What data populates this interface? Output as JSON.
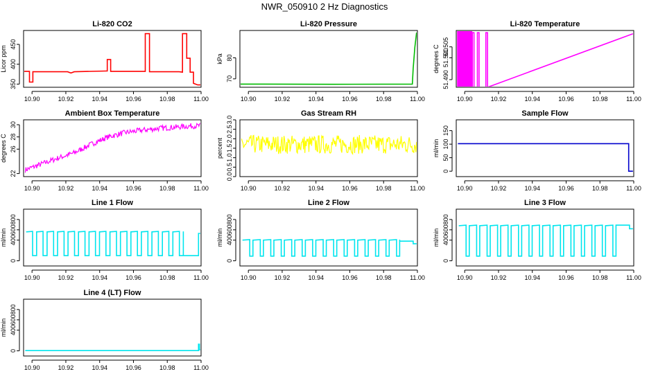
{
  "figure_title": "NWR_050910  2 Hz Diagnostics",
  "chart_data": [
    {
      "type": "line",
      "title": "Li-820 CO2",
      "ylabel": "Licor ppm",
      "color": "#ff0000",
      "xlim": [
        10.895,
        11.0
      ],
      "ylim": [
        342,
        485
      ],
      "xticks": [
        10.9,
        10.92,
        10.94,
        10.96,
        10.98,
        11.0
      ],
      "xtick_labels": [
        "10.90",
        "10.92",
        "10.94",
        "10.96",
        "10.98",
        "11.00"
      ],
      "yticks": [
        350,
        400,
        450
      ],
      "ytick_labels": [
        "350",
        "400",
        "450"
      ],
      "series": [
        {
          "name": "CO2",
          "x": [
            10.895,
            10.8985,
            10.8985,
            10.9005,
            10.9005,
            10.921,
            10.923,
            10.925,
            10.944,
            10.9445,
            10.9445,
            10.9465,
            10.9465,
            10.967,
            10.967,
            10.9695,
            10.9695,
            10.987,
            10.989,
            10.989,
            10.9915,
            10.9915,
            10.9935,
            10.9935,
            10.9955,
            10.9955,
            10.998,
            11.0
          ],
          "y": [
            382,
            382,
            355,
            355,
            381,
            381,
            378,
            381,
            383,
            383,
            412,
            412,
            382,
            382,
            477,
            477,
            381,
            381,
            380,
            477,
            477,
            415,
            415,
            380,
            380,
            352,
            348,
            348
          ]
        }
      ]
    },
    {
      "type": "line",
      "title": "Li-820 Pressure",
      "ylabel": "kPa",
      "color": "#00bb00",
      "xlim": [
        10.895,
        11.0
      ],
      "ylim": [
        66,
        93
      ],
      "xticks": [
        10.9,
        10.92,
        10.94,
        10.96,
        10.98,
        11.0
      ],
      "xtick_labels": [
        "10.90",
        "10.92",
        "10.94",
        "10.96",
        "10.98",
        "11.00"
      ],
      "yticks": [
        70,
        80
      ],
      "ytick_labels": [
        "70",
        "80"
      ],
      "series": [
        {
          "name": "Pressure",
          "x": [
            10.895,
            10.95,
            10.997,
            10.9975,
            10.9985,
            10.9995
          ],
          "y": [
            67.5,
            67.4,
            67.5,
            75,
            85,
            92
          ]
        }
      ]
    },
    {
      "type": "line",
      "title": "Li-820 Temperature",
      "ylabel": "degrees C",
      "color": "#ff00ff",
      "xlim": [
        10.895,
        11.0
      ],
      "ylim": [
        51.4865,
        51.5125
      ],
      "xticks": [
        10.9,
        10.92,
        10.94,
        10.96,
        10.98,
        11.0
      ],
      "xtick_labels": [
        "10.90",
        "10.92",
        "10.94",
        "10.96",
        "10.98",
        "11.00"
      ],
      "yticks": [
        51.49,
        51.5,
        51.505
      ],
      "ytick_labels": [
        "51.490",
        "51.500",
        "51.505"
      ],
      "series": [
        {
          "name": "Temperature",
          "x": [
            10.8955,
            10.9045,
            10.9045,
            10.9055,
            10.9055,
            10.9075,
            10.9075,
            10.9085,
            10.9085,
            10.9125,
            10.9125,
            10.9135,
            10.9135,
            10.9995
          ],
          "y": [
            51.4865,
            51.4865,
            51.5115,
            51.5115,
            51.4865,
            51.4865,
            51.5115,
            51.5115,
            51.4865,
            51.4865,
            51.5115,
            51.5115,
            51.4865,
            51.511
          ],
          "band": [
            10.8955,
            10.9045
          ]
        }
      ]
    },
    {
      "type": "line",
      "title": "Ambient Box Temperature",
      "ylabel": "degrees C",
      "color": "#ff00ff",
      "xlim": [
        10.895,
        11.0
      ],
      "ylim": [
        21.5,
        30.8
      ],
      "xticks": [
        10.9,
        10.92,
        10.94,
        10.96,
        10.98,
        11.0
      ],
      "xtick_labels": [
        "10.90",
        "10.92",
        "10.94",
        "10.96",
        "10.98",
        "11.00"
      ],
      "yticks": [
        22,
        26,
        28,
        30
      ],
      "ytick_labels": [
        "22",
        "26",
        "28",
        "30"
      ],
      "series": [
        {
          "name": "Ambient",
          "x": [
            10.896,
            10.905,
            10.915,
            10.925,
            10.935,
            10.945,
            10.955,
            10.965,
            10.975,
            10.985,
            10.995,
            10.9995
          ],
          "y": [
            22.6,
            23.5,
            24.5,
            25.4,
            26.8,
            28.0,
            28.7,
            29.1,
            29.4,
            29.6,
            29.8,
            29.8
          ],
          "noise": 0.45
        }
      ]
    },
    {
      "type": "line",
      "title": "Gas Stream RH",
      "ylabel": "percent",
      "color": "#ffff00",
      "xlim": [
        10.895,
        11.0
      ],
      "ylim": [
        0,
        3.0
      ],
      "xticks": [
        10.9,
        10.92,
        10.94,
        10.96,
        10.98,
        11.0
      ],
      "xtick_labels": [
        "10.90",
        "10.92",
        "10.94",
        "10.96",
        "10.98",
        "11.00"
      ],
      "yticks": [
        0.0,
        0.5,
        1.0,
        1.5,
        2.0,
        2.5,
        3.0
      ],
      "ytick_labels": [
        "0.0",
        "0.5",
        "1.0",
        "1.5",
        "2.0",
        "2.5",
        "3.0"
      ],
      "series": [
        {
          "name": "RH",
          "x": [
            10.896,
            10.9995
          ],
          "y": [
            1.7,
            1.7
          ],
          "noise": 0.5
        }
      ]
    },
    {
      "type": "line",
      "title": "Sample Flow",
      "ylabel": "ml/min",
      "color": "#0000cc",
      "xlim": [
        10.895,
        11.0
      ],
      "ylim": [
        -20,
        190
      ],
      "xticks": [
        10.9,
        10.92,
        10.94,
        10.96,
        10.98,
        11.0
      ],
      "xtick_labels": [
        "10.90",
        "10.92",
        "10.94",
        "10.96",
        "10.98",
        "11.00"
      ],
      "yticks": [
        0,
        50,
        100,
        150
      ],
      "ytick_labels": [
        "0",
        "50",
        "100",
        "150"
      ],
      "series": [
        {
          "name": "Sample",
          "x": [
            10.896,
            10.997,
            10.997,
            10.9995
          ],
          "y": [
            102,
            102,
            0,
            0
          ]
        }
      ]
    },
    {
      "type": "line",
      "title": "Line 1 Flow",
      "ylabel": "ml/min",
      "color": "#00e5ee",
      "xlim": [
        10.895,
        11.0
      ],
      "ylim": [
        -100,
        1000
      ],
      "xticks": [
        10.9,
        10.92,
        10.94,
        10.96,
        10.98,
        11.0
      ],
      "xtick_labels": [
        "10.90",
        "10.92",
        "10.94",
        "10.96",
        "10.98",
        "11.00"
      ],
      "yticks": [
        0,
        400,
        600,
        800
      ],
      "ytick_labels": [
        "0",
        "400",
        "600",
        "800"
      ],
      "series": [
        {
          "name": "Line 1",
          "pattern": "square",
          "start": 10.8965,
          "end": 10.9895,
          "period": 0.0062,
          "high": 560,
          "low": 100,
          "duty": 0.62,
          "tail_x": [
            10.9895,
            10.9985,
            10.9985,
            10.9995
          ],
          "tail_y": [
            100,
            100,
            530,
            530
          ]
        }
      ]
    },
    {
      "type": "line",
      "title": "Line 2 Flow",
      "ylabel": "ml/min",
      "color": "#00e5ee",
      "xlim": [
        10.895,
        11.0
      ],
      "ylim": [
        -100,
        1000
      ],
      "xticks": [
        10.9,
        10.92,
        10.94,
        10.96,
        10.98,
        11.0
      ],
      "xtick_labels": [
        "10.90",
        "10.92",
        "10.94",
        "10.96",
        "10.98",
        "11.00"
      ],
      "yticks": [
        0,
        400,
        600,
        800
      ],
      "ytick_labels": [
        "0",
        "400",
        "600",
        "800"
      ],
      "series": [
        {
          "name": "Line 2",
          "pattern": "square",
          "start": 10.8965,
          "end": 10.9895,
          "period": 0.0062,
          "high": 400,
          "low": 90,
          "duty": 0.7,
          "tail_x": [
            10.9895,
            10.9975,
            10.9975,
            10.9995
          ],
          "tail_y": [
            380,
            380,
            330,
            330
          ]
        }
      ]
    },
    {
      "type": "line",
      "title": "Line 3 Flow",
      "ylabel": "ml/min",
      "color": "#00e5ee",
      "xlim": [
        10.895,
        11.0
      ],
      "ylim": [
        -100,
        1000
      ],
      "xticks": [
        10.9,
        10.92,
        10.94,
        10.96,
        10.98,
        11.0
      ],
      "xtick_labels": [
        "10.90",
        "10.92",
        "10.94",
        "10.96",
        "10.98",
        "11.00"
      ],
      "yticks": [
        0,
        400,
        600,
        800
      ],
      "ytick_labels": [
        "0",
        "400",
        "600",
        "800"
      ],
      "series": [
        {
          "name": "Line 3",
          "pattern": "square",
          "start": 10.8965,
          "end": 10.9895,
          "period": 0.0062,
          "high": 680,
          "low": 90,
          "duty": 0.7,
          "tail_x": [
            10.9895,
            10.9975,
            10.9975,
            10.9995
          ],
          "tail_y": [
            690,
            690,
            620,
            620
          ]
        }
      ]
    },
    {
      "type": "line",
      "title": "Line 4 (LT) Flow",
      "ylabel": "ml/min",
      "color": "#00e5ee",
      "xlim": [
        10.895,
        11.0
      ],
      "ylim": [
        -100,
        1000
      ],
      "xticks": [
        10.9,
        10.92,
        10.94,
        10.96,
        10.98,
        11.0
      ],
      "xtick_labels": [
        "10.90",
        "10.92",
        "10.94",
        "10.96",
        "10.98",
        "11.00"
      ],
      "yticks": [
        0,
        400,
        600,
        800
      ],
      "ytick_labels": [
        "0",
        "400",
        "600",
        "800"
      ],
      "series": [
        {
          "name": "Line 4",
          "x": [
            10.896,
            10.9985,
            10.9985,
            10.999,
            10.999,
            10.9995
          ],
          "y": [
            5,
            5,
            130,
            130,
            20,
            20
          ]
        }
      ]
    }
  ]
}
